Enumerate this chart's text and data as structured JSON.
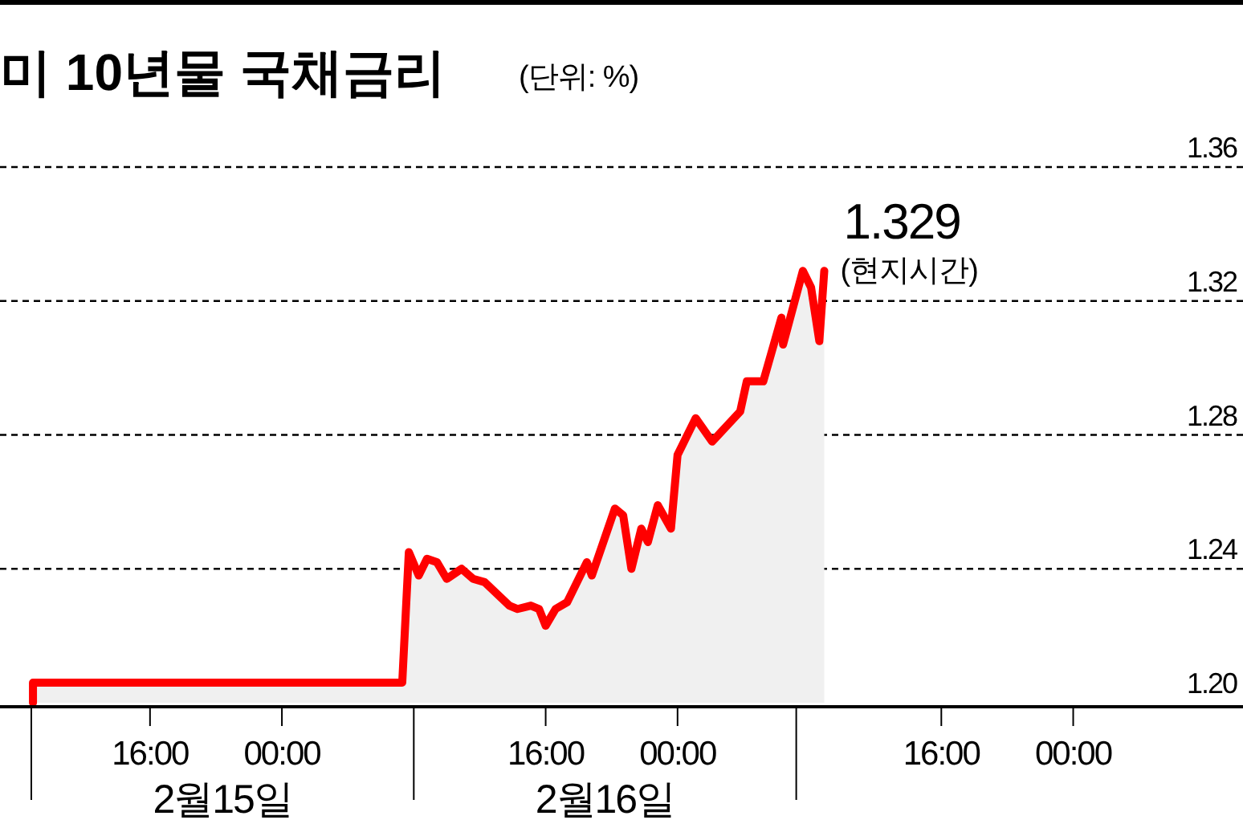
{
  "chart_data": {
    "type": "area",
    "title": "미 10년물 국채금리",
    "subtitle": "(단위: %)",
    "x": [
      "--02-15T08:54",
      "--02-15T08:54",
      "--02-16T07:06",
      "--02-16T07:18",
      "--02-16T07:42",
      "--02-16T08:18",
      "--02-16T08:48",
      "--02-16T09:24",
      "--02-16T10:00",
      "--02-16T10:54",
      "--02-16T11:36",
      "--02-16T12:18",
      "--02-16T13:48",
      "--02-16T14:18",
      "--02-16T15:06",
      "--02-16T15:36",
      "--02-16T16:00",
      "--02-16T16:36",
      "--02-16T17:18",
      "--02-16T18:30",
      "--02-16T18:48",
      "--02-16T20:12",
      "--02-16T20:42",
      "--02-16T21:12",
      "--02-16T21:48",
      "--02-16T22:12",
      "--02-16T22:48",
      "--02-16T23:36",
      "--02-17T00:00",
      "--02-17T01:06",
      "--02-17T02:06",
      "--02-17T03:48",
      "--02-17T04:12",
      "--02-17T05:12",
      "--02-17T06:18",
      "--02-17T06:24",
      "--02-17T07:36",
      "--02-17T08:06",
      "--02-17T08:36",
      "--02-17T08:54"
    ],
    "series": [
      {
        "color": "#ff0000",
        "values": [
          1.2,
          1.206,
          1.206,
          1.206,
          1.245,
          1.238,
          1.243,
          1.242,
          1.237,
          1.24,
          1.237,
          1.236,
          1.229,
          1.228,
          1.229,
          1.228,
          1.223,
          1.228,
          1.23,
          1.242,
          1.238,
          1.258,
          1.256,
          1.24,
          1.252,
          1.248,
          1.259,
          1.252,
          1.274,
          1.285,
          1.278,
          1.287,
          1.296,
          1.296,
          1.315,
          1.307,
          1.329,
          1.324,
          1.308,
          1.329
        ]
      }
    ],
    "xlim": [
      "--02-15T06:54",
      "--02-18T10:18"
    ],
    "xticks": [
      {
        "value": "--02-15T08:48",
        "label": null
      },
      {
        "value": "--02-15T16:00",
        "label": "16:00"
      },
      {
        "value": "--02-16T00:00",
        "label": "00:00"
      },
      {
        "value": "--02-16T08:00",
        "label": null
      },
      {
        "value": "--02-16T16:00",
        "label": "16:00"
      },
      {
        "value": "--02-17T00:00",
        "label": "00:00"
      },
      {
        "value": "--02-17T07:12",
        "label": null
      },
      {
        "value": "--02-17T16:00",
        "label": "16:00"
      },
      {
        "value": "--02-18T00:00",
        "label": "00:00"
      }
    ],
    "ylim": [
      1.2,
      1.36
    ],
    "yticks": [
      {
        "value": 1.2,
        "label": "1.20"
      },
      {
        "value": 1.24,
        "label": "1.24"
      },
      {
        "value": 1.28,
        "label": "1.28"
      },
      {
        "value": 1.32,
        "label": "1.32"
      },
      {
        "value": 1.36,
        "label": "1.36"
      }
    ],
    "grid": "y",
    "annotations": [
      {
        "text": "1.329",
        "x": "--02-17T08:54",
        "y": 1.329
      },
      {
        "text": "(현지시간)",
        "x": "--02-17T08:54",
        "y": 1.329
      },
      "2월15일",
      "2월16일"
    ]
  }
}
